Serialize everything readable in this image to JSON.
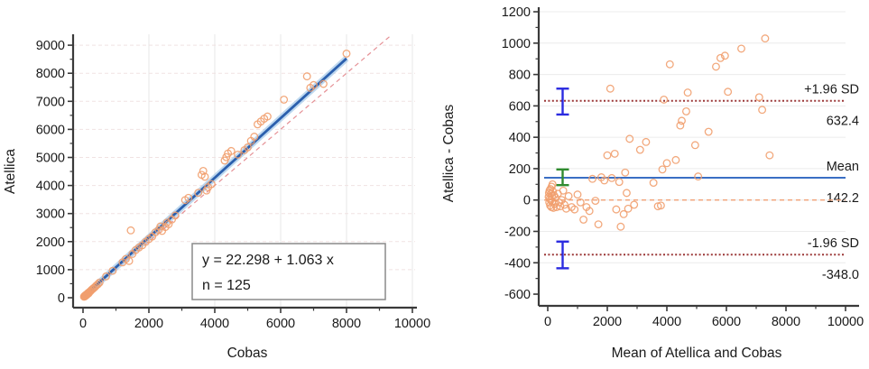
{
  "colors": {
    "text": "#1A1A1A",
    "axis": "#3A3A3A",
    "marker": "#F19E6E",
    "regression_line": "#2B5FAD",
    "regression_band": "#A9CBEA",
    "identity_line": "#E59095",
    "sd_line": "#9B3838",
    "mean_line": "#3A6FC4",
    "zero_line": "#F2A176",
    "error_bar_blue": "#2B2BE0",
    "error_bar_green": "#2F8B2F",
    "grid_vertical": "#E7E7E7",
    "grid_horizontal_left": "#F0E2E2",
    "grid_horizontal_right": "#ECECEC",
    "annotation_border": "#8A8A8A"
  },
  "chart_data": [
    {
      "type": "scatter",
      "name": "regression-scatter",
      "xlabel": "Cobas",
      "ylabel": "Atellica",
      "xlim": [
        0,
        10000
      ],
      "ylim": [
        0,
        9000
      ],
      "xticks": [
        0,
        2000,
        4000,
        6000,
        8000,
        10000
      ],
      "yticks": [
        0,
        1000,
        2000,
        3000,
        4000,
        5000,
        6000,
        7000,
        8000,
        9000
      ],
      "xminor_step": 1000,
      "yminor_step": 500,
      "grid": true,
      "legend_position": "none",
      "annotation": {
        "line1": "y = 22.298 + 1.063 x",
        "line2": "n = 125"
      },
      "regression": {
        "intercept": 22.298,
        "slope": 1.063,
        "x_start": 0,
        "x_end": 8000
      },
      "identity": {
        "intercept": 0,
        "slope": 1,
        "x_start": 0,
        "x_end": 9300
      },
      "points": [
        [
          30,
          35
        ],
        [
          45,
          60
        ],
        [
          55,
          45
        ],
        [
          65,
          80
        ],
        [
          75,
          70
        ],
        [
          85,
          95
        ],
        [
          95,
          85
        ],
        [
          100,
          110
        ],
        [
          110,
          100
        ],
        [
          120,
          130
        ],
        [
          130,
          120
        ],
        [
          140,
          150
        ],
        [
          150,
          140
        ],
        [
          160,
          175
        ],
        [
          175,
          160
        ],
        [
          190,
          200
        ],
        [
          210,
          220
        ],
        [
          230,
          240
        ],
        [
          260,
          280
        ],
        [
          290,
          310
        ],
        [
          320,
          340
        ],
        [
          360,
          380
        ],
        [
          400,
          430
        ],
        [
          450,
          480
        ],
        [
          500,
          540
        ],
        [
          700,
          760
        ],
        [
          900,
          960
        ],
        [
          1200,
          1260
        ],
        [
          1300,
          1380
        ],
        [
          1400,
          1310
        ],
        [
          1450,
          2400
        ],
        [
          1500,
          1560
        ],
        [
          1600,
          1700
        ],
        [
          1700,
          1790
        ],
        [
          1800,
          1870
        ],
        [
          1900,
          1990
        ],
        [
          2000,
          2090
        ],
        [
          2100,
          2180
        ],
        [
          2200,
          2330
        ],
        [
          2300,
          2420
        ],
        [
          2350,
          2540
        ],
        [
          2400,
          2380
        ],
        [
          2500,
          2520
        ],
        [
          2550,
          2680
        ],
        [
          2600,
          2620
        ],
        [
          2700,
          2790
        ],
        [
          2800,
          2930
        ],
        [
          3100,
          3480
        ],
        [
          3200,
          3560
        ],
        [
          3500,
          3740
        ],
        [
          3600,
          4380
        ],
        [
          3650,
          4520
        ],
        [
          3700,
          4310
        ],
        [
          3750,
          3820
        ],
        [
          3800,
          3940
        ],
        [
          3900,
          4050
        ],
        [
          4300,
          4890
        ],
        [
          4350,
          5010
        ],
        [
          4400,
          5140
        ],
        [
          4500,
          5230
        ],
        [
          4700,
          5100
        ],
        [
          4900,
          5260
        ],
        [
          5000,
          5360
        ],
        [
          5100,
          5590
        ],
        [
          5200,
          5740
        ],
        [
          5300,
          6180
        ],
        [
          5400,
          6280
        ],
        [
          5500,
          6380
        ],
        [
          5600,
          6460
        ],
        [
          6100,
          7060
        ],
        [
          6800,
          7890
        ],
        [
          6900,
          7480
        ],
        [
          7000,
          7580
        ],
        [
          7300,
          7620
        ],
        [
          8000,
          8700
        ]
      ]
    },
    {
      "type": "scatter",
      "name": "bland-altman",
      "xlabel": "Mean of Atellica and Cobas",
      "ylabel": "Atellica - Cobas",
      "xlim": [
        0,
        10000
      ],
      "ylim": [
        -600,
        1200
      ],
      "xticks": [
        0,
        2000,
        4000,
        6000,
        8000,
        10000
      ],
      "yticks": [
        -600,
        -400,
        -200,
        0,
        200,
        400,
        600,
        800,
        1000,
        1200
      ],
      "xminor_step": 1000,
      "yminor_step": 100,
      "grid": true,
      "legend_position": "none",
      "hlines": [
        {
          "y": 632.4,
          "label_top": "+1.96 SD",
          "label_value": "632.4",
          "style": "dotted",
          "color_key": "sd_line"
        },
        {
          "y": 142.2,
          "label_top": "Mean",
          "label_value": "142.2",
          "style": "solid",
          "color_key": "mean_line"
        },
        {
          "y": -348.0,
          "label_top": "-1.96 SD",
          "label_value": "-348.0",
          "style": "dotted",
          "color_key": "sd_line"
        },
        {
          "y": 0,
          "label_top": "",
          "label_value": "",
          "style": "dashed",
          "color_key": "zero_line"
        }
      ],
      "error_bars": [
        {
          "x": 500,
          "y_low": 545,
          "y_high": 710,
          "color_key": "error_bar_blue"
        },
        {
          "x": 500,
          "y_low": 95,
          "y_high": 195,
          "color_key": "error_bar_green"
        },
        {
          "x": 500,
          "y_low": -435,
          "y_high": -265,
          "color_key": "error_bar_blue"
        }
      ],
      "points": [
        [
          30,
          20
        ],
        [
          40,
          45
        ],
        [
          50,
          -15
        ],
        [
          60,
          60
        ],
        [
          70,
          10
        ],
        [
          80,
          -35
        ],
        [
          90,
          70
        ],
        [
          100,
          0
        ],
        [
          110,
          40
        ],
        [
          120,
          -45
        ],
        [
          130,
          85
        ],
        [
          140,
          25
        ],
        [
          150,
          -10
        ],
        [
          160,
          100
        ],
        [
          175,
          55
        ],
        [
          190,
          -50
        ],
        [
          210,
          30
        ],
        [
          230,
          -25
        ],
        [
          260,
          15
        ],
        [
          300,
          -45
        ],
        [
          340,
          40
        ],
        [
          380,
          -15
        ],
        [
          420,
          -40
        ],
        [
          470,
          0
        ],
        [
          520,
          60
        ],
        [
          560,
          -30
        ],
        [
          620,
          -55
        ],
        [
          700,
          25
        ],
        [
          800,
          -45
        ],
        [
          900,
          -60
        ],
        [
          1000,
          35
        ],
        [
          1100,
          -15
        ],
        [
          1200,
          -125
        ],
        [
          1300,
          -45
        ],
        [
          1400,
          -70
        ],
        [
          1500,
          135
        ],
        [
          1600,
          -5
        ],
        [
          1700,
          -155
        ],
        [
          1800,
          145
        ],
        [
          1900,
          125
        ],
        [
          2000,
          285
        ],
        [
          2100,
          710
        ],
        [
          2150,
          140
        ],
        [
          2250,
          295
        ],
        [
          2300,
          -60
        ],
        [
          2400,
          115
        ],
        [
          2450,
          -170
        ],
        [
          2550,
          -90
        ],
        [
          2600,
          175
        ],
        [
          2650,
          45
        ],
        [
          2700,
          -55
        ],
        [
          2750,
          390
        ],
        [
          2900,
          -30
        ],
        [
          3100,
          320
        ],
        [
          3300,
          370
        ],
        [
          3550,
          110
        ],
        [
          3700,
          -40
        ],
        [
          3800,
          -35
        ],
        [
          3850,
          195
        ],
        [
          3900,
          640
        ],
        [
          4000,
          235
        ],
        [
          4100,
          865
        ],
        [
          4300,
          255
        ],
        [
          4450,
          475
        ],
        [
          4500,
          505
        ],
        [
          4650,
          565
        ],
        [
          4700,
          685
        ],
        [
          4950,
          350
        ],
        [
          5050,
          150
        ],
        [
          5400,
          435
        ],
        [
          5650,
          850
        ],
        [
          5800,
          905
        ],
        [
          5950,
          920
        ],
        [
          6050,
          690
        ],
        [
          6500,
          965
        ],
        [
          7100,
          655
        ],
        [
          7200,
          575
        ],
        [
          7300,
          1030
        ],
        [
          7450,
          285
        ]
      ]
    }
  ]
}
